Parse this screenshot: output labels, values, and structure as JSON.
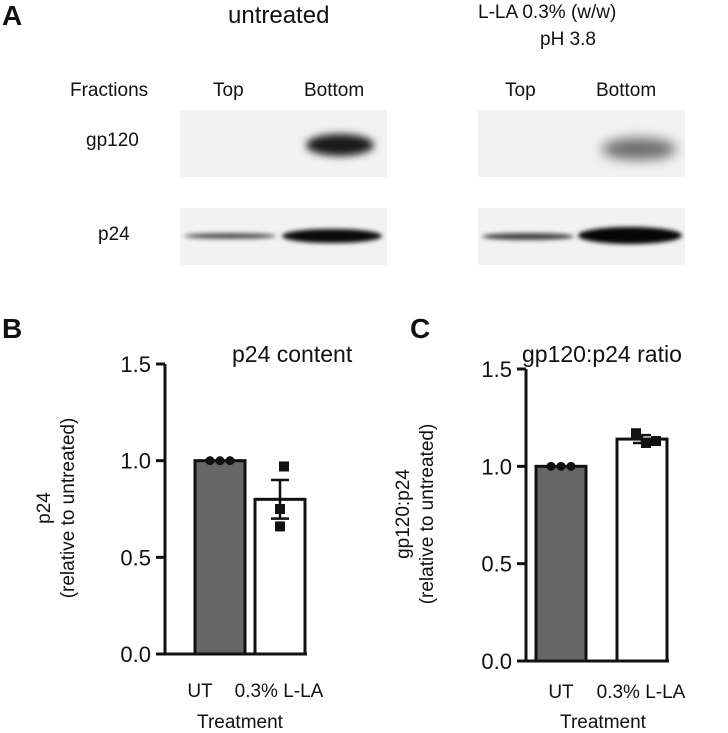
{
  "panels": {
    "a": "A",
    "b": "B",
    "c": "C"
  },
  "blot": {
    "conditions": [
      "untreated",
      "L-LA 0.3% (w/w)",
      "pH 3.8"
    ],
    "fractions_label": "Fractions",
    "fractions": [
      "Top",
      "Bottom",
      "Top",
      "Bottom"
    ],
    "rows": [
      "gp120",
      "p24"
    ]
  },
  "chart_data": [
    {
      "type": "bar",
      "title": "p24 content",
      "categories": [
        "UT",
        "0.3% L-LA"
      ],
      "values": [
        1.0,
        0.8
      ],
      "error": [
        0,
        0.1
      ],
      "points": [
        [
          1.0,
          1.0,
          1.0
        ],
        [
          0.97,
          0.75,
          0.66
        ]
      ],
      "xlabel": "Treatment",
      "ylabel": "p24",
      "ylabel2": "(relative to untreated)",
      "ylim": [
        0,
        1.5
      ],
      "yticks": [
        "0.0",
        "0.5",
        "1.0",
        "1.5"
      ],
      "colors": [
        "#666666",
        "#ffffff"
      ]
    },
    {
      "type": "bar",
      "title": "gp120:p24 ratio",
      "categories": [
        "UT",
        "0.3% L-LA"
      ],
      "values": [
        1.0,
        1.14
      ],
      "error": [
        0,
        0.02
      ],
      "points": [
        [
          1.0,
          1.0,
          1.0
        ],
        [
          1.17,
          1.12,
          1.13
        ]
      ],
      "xlabel": "Treatment",
      "ylabel": "gp120:p24",
      "ylabel2": "(relative to untreated)",
      "ylim": [
        0,
        1.5
      ],
      "yticks": [
        "0.0",
        "0.5",
        "1.0",
        "1.5"
      ],
      "colors": [
        "#666666",
        "#ffffff"
      ]
    }
  ]
}
